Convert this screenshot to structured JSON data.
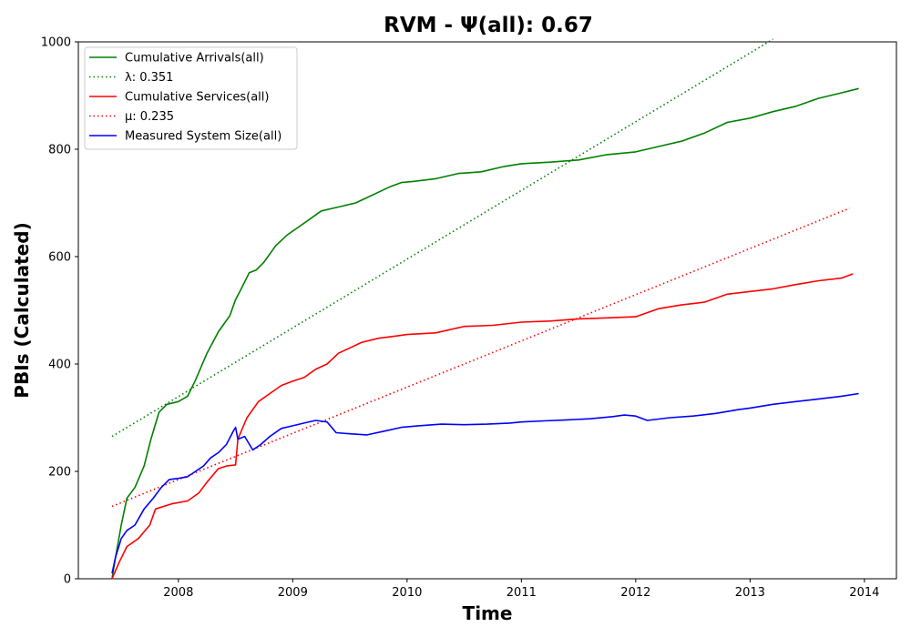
{
  "chart_data": {
    "type": "line",
    "title": "RVM -  Ψ(all): 0.67",
    "xlabel": "Time",
    "ylabel": "PBIs (Calculated)",
    "xlim": [
      2007.125,
      2014.28
    ],
    "ylim": [
      0,
      1000
    ],
    "xticks": [
      2008,
      2009,
      2010,
      2011,
      2012,
      2013,
      2014
    ],
    "xtick_labels": [
      "2008",
      "2009",
      "2010",
      "2011",
      "2012",
      "2013",
      "2014"
    ],
    "yticks": [
      0,
      200,
      400,
      600,
      800,
      1000
    ],
    "ytick_labels": [
      "0",
      "200",
      "400",
      "600",
      "800",
      "1000"
    ],
    "grid": false,
    "legend_position": "top-left",
    "series": [
      {
        "name": "Cumulative Arrivals(all)",
        "legend_label": "Cumulative Arrivals(all)",
        "color": "#008000",
        "style": "solid",
        "x": [
          2007.42,
          2007.45,
          2007.5,
          2007.55,
          2007.62,
          2007.7,
          2007.76,
          2007.83,
          2007.9,
          2008.0,
          2008.08,
          2008.15,
          2008.25,
          2008.35,
          2008.45,
          2008.5,
          2008.55,
          2008.62,
          2008.68,
          2008.75,
          2008.85,
          2008.95,
          2009.05,
          2009.15,
          2009.25,
          2009.35,
          2009.45,
          2009.55,
          2009.65,
          2009.75,
          2009.85,
          2009.95,
          2010.05,
          2010.25,
          2010.45,
          2010.65,
          2010.85,
          2011.0,
          2011.25,
          2011.5,
          2011.75,
          2012.0,
          2012.2,
          2012.4,
          2012.6,
          2012.8,
          2013.0,
          2013.2,
          2013.4,
          2013.6,
          2013.8,
          2013.95
        ],
        "values": [
          0,
          40,
          100,
          150,
          170,
          210,
          260,
          310,
          325,
          330,
          340,
          370,
          420,
          460,
          490,
          520,
          540,
          570,
          575,
          590,
          620,
          640,
          655,
          670,
          685,
          690,
          695,
          700,
          710,
          720,
          730,
          738,
          740,
          745,
          755,
          758,
          768,
          773,
          776,
          780,
          790,
          795,
          805,
          815,
          830,
          850,
          858,
          870,
          880,
          895,
          905,
          913
        ]
      },
      {
        "name": "λ: 0.351",
        "legend_label": "λ: 0.351",
        "color": "#008000",
        "style": "dotted",
        "x": [
          2007.42,
          2013.2
        ],
        "values": [
          265,
          1005
        ]
      },
      {
        "name": "Cumulative Services(all)",
        "legend_label": "Cumulative Services(all)",
        "color": "#ff0000",
        "style": "solid",
        "x": [
          2007.42,
          2007.48,
          2007.55,
          2007.65,
          2007.75,
          2007.8,
          2007.95,
          2008.08,
          2008.18,
          2008.25,
          2008.35,
          2008.42,
          2008.5,
          2008.52,
          2008.6,
          2008.7,
          2008.8,
          2008.9,
          2009.0,
          2009.1,
          2009.2,
          2009.3,
          2009.4,
          2009.5,
          2009.6,
          2009.75,
          2009.9,
          2010.0,
          2010.25,
          2010.5,
          2010.75,
          2011.0,
          2011.25,
          2011.5,
          2011.75,
          2012.0,
          2012.2,
          2012.4,
          2012.6,
          2012.8,
          2013.0,
          2013.2,
          2013.4,
          2013.6,
          2013.8,
          2013.9
        ],
        "values": [
          0,
          30,
          60,
          75,
          100,
          130,
          140,
          145,
          160,
          180,
          205,
          210,
          212,
          260,
          300,
          330,
          345,
          360,
          368,
          375,
          390,
          400,
          420,
          430,
          440,
          448,
          452,
          455,
          458,
          470,
          472,
          478,
          480,
          484,
          486,
          488,
          503,
          510,
          515,
          530,
          535,
          540,
          548,
          555,
          560,
          568
        ]
      },
      {
        "name": "μ: 0.235",
        "legend_label": "μ: 0.235",
        "color": "#ff0000",
        "style": "dotted",
        "x": [
          2007.42,
          2013.87
        ],
        "values": [
          135,
          690
        ]
      },
      {
        "name": "Measured System Size(all)",
        "legend_label": "Measured System Size(all)",
        "color": "#0000ff",
        "style": "solid",
        "x": [
          2007.42,
          2007.45,
          2007.5,
          2007.55,
          2007.62,
          2007.7,
          2007.78,
          2007.85,
          2007.92,
          2008.0,
          2008.08,
          2008.15,
          2008.22,
          2008.28,
          2008.35,
          2008.42,
          2008.48,
          2008.5,
          2008.52,
          2008.58,
          2008.65,
          2008.72,
          2008.8,
          2008.9,
          2009.0,
          2009.1,
          2009.2,
          2009.3,
          2009.38,
          2009.5,
          2009.65,
          2009.8,
          2009.95,
          2010.1,
          2010.3,
          2010.5,
          2010.7,
          2010.9,
          2011.0,
          2011.2,
          2011.4,
          2011.6,
          2011.8,
          2011.9,
          2012.0,
          2012.1,
          2012.3,
          2012.5,
          2012.7,
          2012.9,
          2013.0,
          2013.2,
          2013.4,
          2013.6,
          2013.8,
          2013.95
        ],
        "values": [
          10,
          40,
          75,
          90,
          100,
          130,
          150,
          170,
          185,
          187,
          190,
          200,
          210,
          225,
          235,
          250,
          275,
          282,
          260,
          265,
          240,
          250,
          265,
          280,
          285,
          290,
          295,
          292,
          272,
          270,
          268,
          275,
          282,
          285,
          288,
          287,
          288,
          290,
          292,
          294,
          296,
          298,
          302,
          305,
          303,
          295,
          300,
          303,
          308,
          315,
          318,
          325,
          330,
          335,
          340,
          345
        ]
      }
    ]
  }
}
